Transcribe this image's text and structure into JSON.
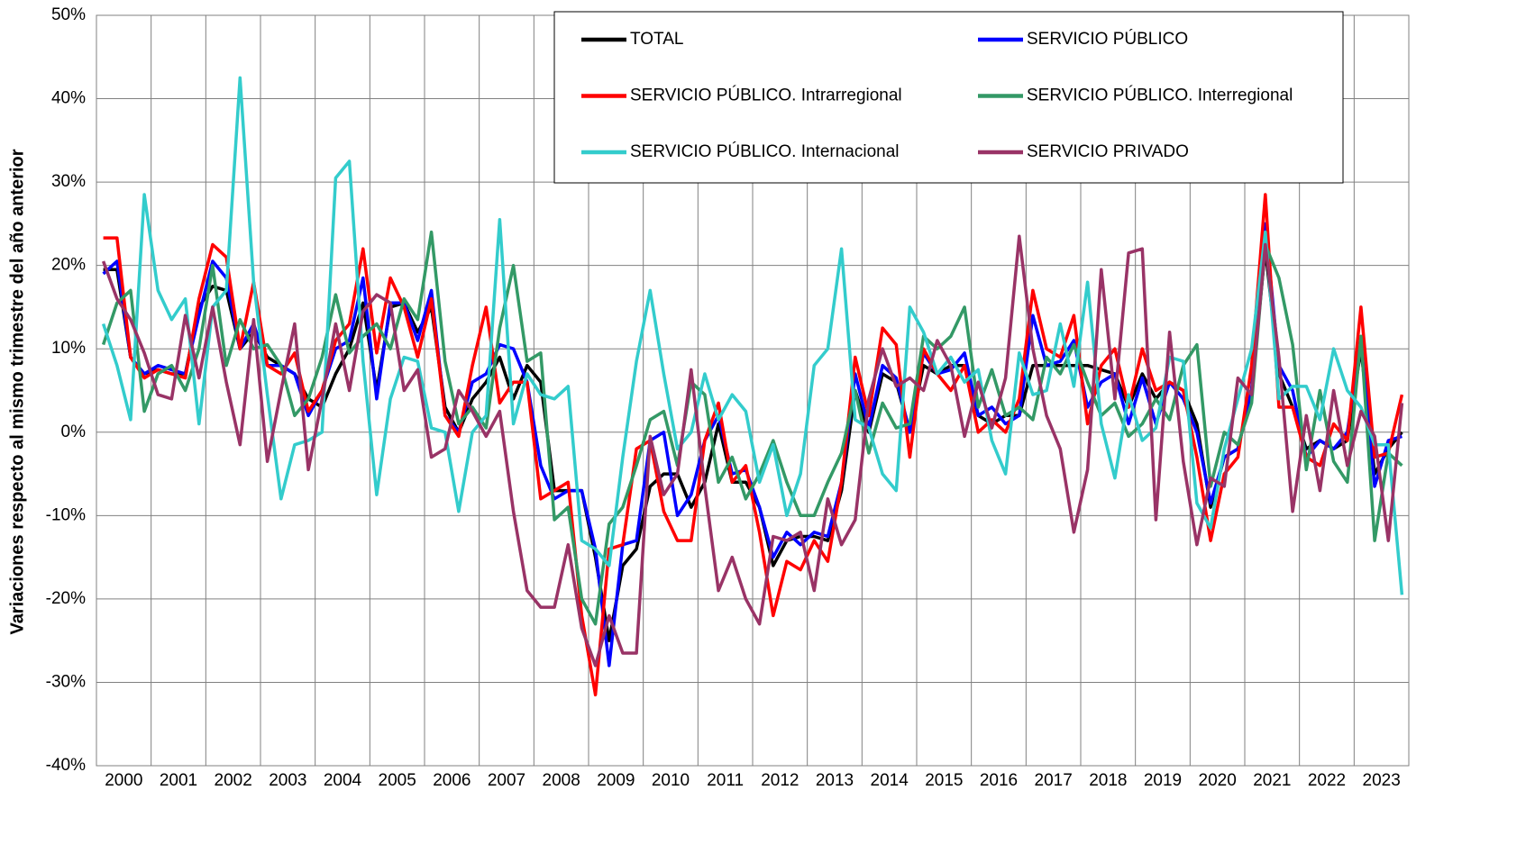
{
  "chart_data": {
    "type": "line",
    "y_label": "Variaciones respecto al mismo trimestre del año anterior",
    "categories": [
      "2000",
      null,
      null,
      null,
      "2001",
      null,
      null,
      null,
      "2002",
      null,
      null,
      null,
      "2003",
      null,
      null,
      null,
      "2004",
      null,
      null,
      null,
      "2005",
      null,
      null,
      null,
      "2006",
      null,
      null,
      null,
      "2007",
      null,
      null,
      null,
      "2008",
      null,
      null,
      null,
      "2009",
      null,
      null,
      null,
      "2010",
      null,
      null,
      null,
      "2011",
      null,
      null,
      null,
      "2012",
      null,
      null,
      null,
      "2013",
      null,
      null,
      null,
      "2014",
      null,
      null,
      null,
      "2015",
      null,
      null,
      null,
      "2016",
      null,
      null,
      null,
      "2017",
      null,
      null,
      null,
      "2018",
      null,
      null,
      null,
      "2019",
      null,
      null,
      null,
      "2020",
      null,
      null,
      null,
      "2021",
      null,
      null,
      null,
      "2022",
      null,
      null,
      null,
      "2023",
      null,
      null,
      null
    ],
    "ylim": [
      -40,
      50
    ],
    "yticks": [
      {
        "value": -40,
        "label": "-40%"
      },
      {
        "value": -30,
        "label": "-30%"
      },
      {
        "value": -20,
        "label": "-20%"
      },
      {
        "value": -10,
        "label": "-10%"
      },
      {
        "value": 0,
        "label": "0%"
      },
      {
        "value": 10,
        "label": "10%"
      },
      {
        "value": 20,
        "label": "20%"
      },
      {
        "value": 30,
        "label": "30%"
      },
      {
        "value": 40,
        "label": "40%"
      },
      {
        "value": 50,
        "label": "50%"
      }
    ],
    "grid": true,
    "series": [
      {
        "name": "TOTAL",
        "color": "#000000",
        "values": [
          19.5,
          19.5,
          9,
          7,
          7.5,
          7,
          7,
          15,
          17.5,
          17,
          10,
          12,
          9,
          8,
          7,
          4,
          3,
          7,
          10,
          15.5,
          5,
          15,
          15.5,
          12,
          15,
          3,
          0,
          4,
          6,
          9,
          4,
          8,
          6,
          -7,
          -7,
          -7,
          -15,
          -25,
          -16,
          -14,
          -6.5,
          -5,
          -5,
          -9,
          -6,
          1,
          -6,
          -6,
          -9,
          -16,
          -13,
          -12.5,
          -12.5,
          -13,
          -7,
          5,
          0,
          7,
          6,
          0,
          8,
          7,
          8,
          8,
          2,
          1,
          2,
          2,
          8,
          8,
          8,
          8,
          8,
          7.5,
          7,
          3,
          7,
          4,
          6,
          5,
          1,
          -9,
          -3,
          -2,
          5,
          22,
          7,
          3,
          -2,
          -1,
          -2,
          -1,
          10,
          -5,
          -2,
          0
        ]
      },
      {
        "name": "SERVICIO PÚBLICO",
        "color": "#0000ff",
        "values": [
          19,
          20.5,
          9,
          7,
          8,
          7.5,
          7,
          14,
          20.5,
          18.5,
          10,
          13,
          8,
          8,
          7,
          2,
          5,
          10,
          11,
          18.5,
          4,
          15.5,
          15.5,
          11,
          17,
          2,
          0,
          6,
          7,
          10.5,
          10,
          6,
          -4,
          -8,
          -7,
          -7,
          -14,
          -28,
          -13.5,
          -13,
          -1,
          0,
          -10,
          -7.5,
          -1,
          2,
          -5,
          -4.5,
          -9,
          -15,
          -12,
          -13.5,
          -12,
          -12.5,
          -6,
          7,
          0.5,
          8,
          6.5,
          0,
          9.5,
          7,
          7.5,
          9.5,
          2,
          3,
          1,
          2,
          14,
          8,
          8.5,
          11,
          3,
          6,
          7,
          1,
          6.5,
          1,
          6,
          4,
          0,
          -8.5,
          -3,
          -2,
          5,
          25,
          8,
          5,
          -3,
          -1,
          -2,
          0,
          11,
          -6.5,
          -1,
          -0.5
        ]
      },
      {
        "name": "SERVICIO PÚBLICO. Intrarregional",
        "color": "#ff0000",
        "values": [
          23.3,
          23.3,
          9,
          6.5,
          7.5,
          7,
          6.5,
          16,
          22.5,
          21,
          10,
          18,
          8,
          7,
          9.5,
          2.5,
          5,
          11,
          13,
          22,
          9.5,
          18.5,
          15,
          9,
          16,
          2,
          -0.5,
          8,
          15,
          3.5,
          6,
          6,
          -8,
          -7,
          -6,
          -22,
          -31.5,
          -14,
          -13.5,
          -2,
          -1,
          -9.5,
          -13,
          -13,
          -1,
          3.5,
          -6,
          -4,
          -12,
          -22,
          -15.5,
          -16.5,
          -13,
          -15.5,
          -6,
          9,
          2,
          12.5,
          10.5,
          -3,
          10,
          7,
          5,
          8,
          0,
          1.5,
          0,
          4,
          17,
          10,
          9,
          14,
          1,
          8,
          10,
          3,
          10,
          5,
          6,
          5,
          -3,
          -13,
          -5,
          -3,
          8,
          28.5,
          3,
          3,
          -3,
          -4,
          1,
          -1,
          15,
          -3,
          -2.5,
          4.5
        ]
      },
      {
        "name": "SERVICIO PÚBLICO. Interregional",
        "color": "#339966",
        "values": [
          10.5,
          15.5,
          17,
          2.5,
          7,
          8,
          5,
          10,
          20,
          8,
          13.5,
          10,
          10.5,
          8,
          2,
          4,
          9,
          16.5,
          9.5,
          11.5,
          13,
          10,
          16,
          13.5,
          24,
          8.5,
          1,
          3,
          0.5,
          12.5,
          20,
          8.5,
          9.5,
          -10.5,
          -9,
          -20,
          -23,
          -11,
          -9,
          -4,
          1.5,
          2.5,
          -4,
          6,
          4.5,
          -6,
          -3,
          -8,
          -5,
          -1,
          -6,
          -10,
          -10,
          -6,
          -2.5,
          5,
          -2.5,
          3.5,
          0.5,
          1,
          11.5,
          10,
          11.5,
          15,
          3,
          7.5,
          2,
          3,
          1.5,
          9,
          7,
          10.5,
          6,
          2,
          3.5,
          -0.5,
          1,
          4,
          1.5,
          8,
          10.5,
          -6.5,
          0,
          -1.5,
          3.5,
          22.5,
          18.5,
          10.5,
          -4.5,
          5,
          -3.5,
          -6,
          11.5,
          -13,
          -2.5,
          -4
        ]
      },
      {
        "name": "SERVICIO PÚBLICO. Internacional",
        "color": "#33cccc",
        "values": [
          13,
          8,
          1.5,
          28.5,
          17,
          13.5,
          16,
          1,
          15,
          17,
          42.5,
          18,
          4.5,
          -8,
          -1.5,
          -1,
          0,
          30.5,
          32.5,
          8.5,
          -7.5,
          4,
          9,
          8.5,
          0.5,
          0,
          -9.5,
          0,
          2,
          25.5,
          1,
          7,
          4.5,
          4,
          5.5,
          -13,
          -14,
          -16,
          -3,
          8.5,
          17,
          7,
          -2,
          0,
          7,
          1.5,
          4.5,
          2.5,
          -6,
          -1.5,
          -10,
          -5,
          8,
          10,
          22,
          1.5,
          0.5,
          -5,
          -7,
          15,
          12,
          7,
          9,
          6,
          7.5,
          -1,
          -5,
          9.5,
          4.5,
          5,
          13,
          5.5,
          18,
          1,
          -5.5,
          4.5,
          -1,
          0.5,
          9,
          8.5,
          -8.5,
          -11.5,
          -2,
          4,
          10,
          24,
          4,
          5.5,
          5.5,
          1.5,
          10,
          5,
          3,
          -1.5,
          -1.5,
          -19.5
        ]
      },
      {
        "name": "SERVICIO PRIVADO",
        "color": "#993366",
        "values": [
          20.5,
          16,
          13.5,
          9.5,
          4.5,
          4,
          14,
          6.5,
          15,
          6,
          -1.5,
          13.5,
          -3.5,
          5,
          13,
          -4.5,
          4,
          13,
          5,
          14.5,
          16.5,
          15.5,
          5,
          7.5,
          -3,
          -2,
          5,
          2.5,
          -0.5,
          2.5,
          -9.5,
          -19,
          -21,
          -21,
          -13.5,
          -23.5,
          -28,
          -22,
          -26.5,
          -26.5,
          -0.5,
          -7.5,
          -5,
          7.5,
          -6.5,
          -19,
          -15,
          -20,
          -23,
          -12.5,
          -13,
          -12,
          -19,
          -8,
          -13.5,
          -10.5,
          4,
          10,
          5.5,
          6.5,
          5,
          11,
          8,
          -0.5,
          6,
          0.5,
          6.5,
          23.5,
          10,
          2,
          -2,
          -12,
          -4.5,
          19.5,
          4,
          21.5,
          22,
          -10.5,
          12,
          -3.5,
          -13.5,
          -5.5,
          -6.5,
          6.5,
          4.5,
          22.5,
          9,
          -9.5,
          2,
          -7,
          5,
          -4,
          2.5,
          -0.5,
          -13,
          3.5
        ]
      }
    ]
  }
}
